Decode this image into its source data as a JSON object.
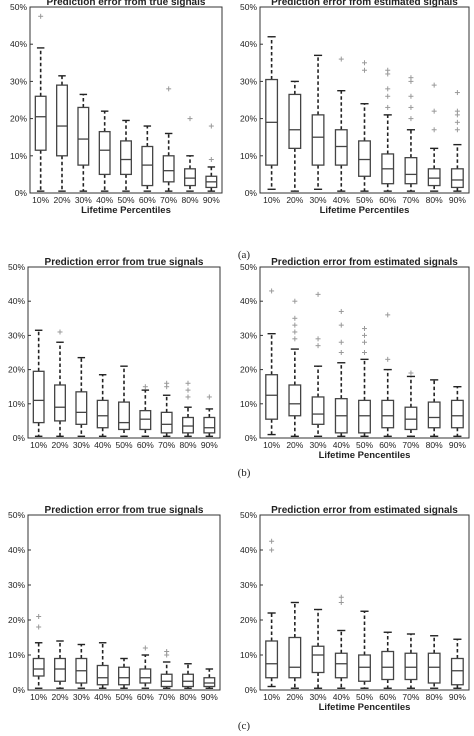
{
  "subfigure_labels": [
    "(a)",
    "(b)",
    "(c)"
  ],
  "chart_data": [
    {
      "type": "box",
      "panel": "(a)",
      "title": "Prediction error from true signals",
      "xlabel": "Lifetime Percentiles",
      "ylabel": "",
      "categories": [
        "10%",
        "20%",
        "30%",
        "40%",
        "50%",
        "60%",
        "70%",
        "80%",
        "90%"
      ],
      "yticks": [
        "0%",
        "10%",
        "20%",
        "30%",
        "40%",
        "50%"
      ],
      "ylim": [
        0,
        50
      ],
      "boxes": [
        {
          "min": 0.5,
          "q1": 11.5,
          "median": 20.5,
          "q3": 26,
          "max": 39,
          "outliers": [
            47.5
          ]
        },
        {
          "min": 0.5,
          "q1": 10,
          "median": 18,
          "q3": 29,
          "max": 31.5,
          "outliers": []
        },
        {
          "min": 0.5,
          "q1": 7.5,
          "median": 14.5,
          "q3": 23,
          "max": 26.5,
          "outliers": []
        },
        {
          "min": 0.5,
          "q1": 5,
          "median": 11.5,
          "q3": 16.5,
          "max": 22,
          "outliers": []
        },
        {
          "min": 0.5,
          "q1": 5,
          "median": 9,
          "q3": 14,
          "max": 19.5,
          "outliers": []
        },
        {
          "min": 0.5,
          "q1": 2,
          "median": 7.5,
          "q3": 12.5,
          "max": 18,
          "outliers": []
        },
        {
          "min": 0.5,
          "q1": 3,
          "median": 6,
          "q3": 10,
          "max": 16,
          "outliers": [
            28
          ]
        },
        {
          "min": 0.5,
          "q1": 2,
          "median": 4,
          "q3": 6.5,
          "max": 10,
          "outliers": [
            20
          ]
        },
        {
          "min": 0.5,
          "q1": 1.5,
          "median": 3,
          "q3": 4.5,
          "max": 7,
          "outliers": [
            9,
            18
          ]
        }
      ]
    },
    {
      "type": "box",
      "panel": "(a)",
      "title": "Prediction error from estimated signals",
      "xlabel": "Lifetime Percentiles",
      "ylabel": "",
      "categories": [
        "10%",
        "20%",
        "30%",
        "40%",
        "50%",
        "60%",
        "70%",
        "80%",
        "90%"
      ],
      "yticks": [
        "0%",
        "10%",
        "20%",
        "30%",
        "40%",
        "50%"
      ],
      "ylim": [
        0,
        50
      ],
      "boxes": [
        {
          "min": 1,
          "q1": 7.5,
          "median": 19,
          "q3": 30.5,
          "max": 42,
          "outliers": []
        },
        {
          "min": 0.5,
          "q1": 12,
          "median": 17,
          "q3": 26.5,
          "max": 30,
          "outliers": []
        },
        {
          "min": 1,
          "q1": 7.5,
          "median": 15,
          "q3": 21,
          "max": 37,
          "outliers": []
        },
        {
          "min": 0.5,
          "q1": 7.5,
          "median": 12.5,
          "q3": 17,
          "max": 27.5,
          "outliers": [
            36
          ]
        },
        {
          "min": 0.5,
          "q1": 4.5,
          "median": 9,
          "q3": 14,
          "max": 24,
          "outliers": [
            33,
            35
          ]
        },
        {
          "min": 0.5,
          "q1": 2.5,
          "median": 6.5,
          "q3": 10.5,
          "max": 21,
          "outliers": [
            23,
            26,
            28,
            32,
            33
          ]
        },
        {
          "min": 0.5,
          "q1": 2.5,
          "median": 5,
          "q3": 9.5,
          "max": 17,
          "outliers": [
            20,
            23,
            26,
            30,
            31
          ]
        },
        {
          "min": 0.5,
          "q1": 2,
          "median": 4,
          "q3": 6.5,
          "max": 12,
          "outliers": [
            17,
            22,
            29
          ]
        },
        {
          "min": 0.5,
          "q1": 1.5,
          "median": 3.5,
          "q3": 6.5,
          "max": 13,
          "outliers": [
            17,
            19,
            21,
            22,
            27
          ]
        }
      ]
    },
    {
      "type": "box",
      "panel": "(b)",
      "title": "Prediction error from true signals",
      "xlabel": "",
      "ylabel": "",
      "categories": [
        "10%",
        "20%",
        "30%",
        "40%",
        "50%",
        "60%",
        "70%",
        "80%",
        "90%"
      ],
      "yticks": [
        "0%",
        "10%",
        "20%",
        "30%",
        "40%",
        "50%"
      ],
      "ylim": [
        0,
        50
      ],
      "boxes": [
        {
          "min": 0.5,
          "q1": 4.5,
          "median": 11,
          "q3": 19.5,
          "max": 31.5,
          "outliers": []
        },
        {
          "min": 0.5,
          "q1": 5,
          "median": 9,
          "q3": 15.5,
          "max": 28,
          "outliers": [
            31
          ]
        },
        {
          "min": 0.5,
          "q1": 4,
          "median": 7.5,
          "q3": 13.5,
          "max": 23.5,
          "outliers": []
        },
        {
          "min": 0.5,
          "q1": 3,
          "median": 6.5,
          "q3": 11,
          "max": 18.5,
          "outliers": []
        },
        {
          "min": 0.5,
          "q1": 2.5,
          "median": 4.5,
          "q3": 10.5,
          "max": 21,
          "outliers": []
        },
        {
          "min": 0.5,
          "q1": 2.5,
          "median": 5.5,
          "q3": 8,
          "max": 14,
          "outliers": [
            15
          ]
        },
        {
          "min": 0.5,
          "q1": 1.5,
          "median": 4,
          "q3": 7.5,
          "max": 12.5,
          "outliers": [
            15,
            16
          ]
        },
        {
          "min": 0.5,
          "q1": 1.5,
          "median": 3.5,
          "q3": 6,
          "max": 9,
          "outliers": [
            12,
            14,
            16
          ]
        },
        {
          "min": 0.5,
          "q1": 1.5,
          "median": 3,
          "q3": 6,
          "max": 8.5,
          "outliers": [
            12
          ]
        }
      ]
    },
    {
      "type": "box",
      "panel": "(b)",
      "title": "Prediction error from estimated signals",
      "xlabel": "Lifetime Pencentiles",
      "ylabel": "",
      "categories": [
        "10%",
        "20%",
        "30%",
        "40%",
        "50%",
        "60%",
        "70%",
        "80%",
        "90%"
      ],
      "yticks": [
        "0%",
        "10%",
        "20%",
        "30%",
        "40%",
        "50%"
      ],
      "ylim": [
        0,
        50
      ],
      "boxes": [
        {
          "min": 1,
          "q1": 5.5,
          "median": 12.5,
          "q3": 18.5,
          "max": 30.5,
          "outliers": [
            43
          ]
        },
        {
          "min": 0.5,
          "q1": 6.5,
          "median": 10,
          "q3": 15.5,
          "max": 26,
          "outliers": [
            29,
            31,
            33,
            35,
            40
          ]
        },
        {
          "min": 0.5,
          "q1": 4,
          "median": 7,
          "q3": 12,
          "max": 21,
          "outliers": [
            27,
            29,
            42
          ]
        },
        {
          "min": 0.5,
          "q1": 1.5,
          "median": 6.5,
          "q3": 11.5,
          "max": 22,
          "outliers": [
            25,
            28,
            33,
            37
          ]
        },
        {
          "min": 0.5,
          "q1": 1.5,
          "median": 6.5,
          "q3": 11,
          "max": 23,
          "outliers": [
            25,
            28,
            30,
            32
          ]
        },
        {
          "min": 0.5,
          "q1": 3,
          "median": 6.5,
          "q3": 11,
          "max": 20,
          "outliers": [
            23,
            36
          ]
        },
        {
          "min": 0.5,
          "q1": 2.5,
          "median": 5.5,
          "q3": 9,
          "max": 18,
          "outliers": [
            19
          ]
        },
        {
          "min": 0.5,
          "q1": 3,
          "median": 6,
          "q3": 10.5,
          "max": 17,
          "outliers": []
        },
        {
          "min": 0.5,
          "q1": 3,
          "median": 6.5,
          "q3": 11,
          "max": 15,
          "outliers": []
        }
      ]
    },
    {
      "type": "box",
      "panel": "(c)",
      "title": "Prediction error from true signals",
      "xlabel": "",
      "ylabel": "",
      "categories": [
        "10%",
        "20%",
        "30%",
        "40%",
        "50%",
        "60%",
        "70%",
        "80%",
        "90%"
      ],
      "yticks": [
        "0%",
        "10%",
        "20%",
        "30%",
        "40%",
        "50%"
      ],
      "ylim": [
        0,
        50
      ],
      "boxes": [
        {
          "min": 0.5,
          "q1": 4,
          "median": 6,
          "q3": 9,
          "max": 13.5,
          "outliers": [
            18,
            21
          ]
        },
        {
          "min": 0.5,
          "q1": 2.5,
          "median": 6,
          "q3": 9,
          "max": 14,
          "outliers": []
        },
        {
          "min": 0.5,
          "q1": 2,
          "median": 5.5,
          "q3": 9,
          "max": 13,
          "outliers": []
        },
        {
          "min": 0.5,
          "q1": 1.5,
          "median": 3.5,
          "q3": 7,
          "max": 13.5,
          "outliers": []
        },
        {
          "min": 0.5,
          "q1": 1.5,
          "median": 3.5,
          "q3": 6.5,
          "max": 9,
          "outliers": []
        },
        {
          "min": 0.5,
          "q1": 2,
          "median": 3.5,
          "q3": 6,
          "max": 10,
          "outliers": [
            12
          ]
        },
        {
          "min": 0.5,
          "q1": 1,
          "median": 2.5,
          "q3": 4.5,
          "max": 8,
          "outliers": [
            10,
            11
          ]
        },
        {
          "min": 0.5,
          "q1": 1,
          "median": 2.5,
          "q3": 4.5,
          "max": 7.5,
          "outliers": []
        },
        {
          "min": 0.5,
          "q1": 1,
          "median": 2,
          "q3": 3.5,
          "max": 6,
          "outliers": []
        }
      ]
    },
    {
      "type": "box",
      "panel": "(c)",
      "title": "Prediction error from estimated signals",
      "xlabel": "Lifetime Pencentiles",
      "ylabel": "",
      "categories": [
        "10%",
        "20%",
        "30%",
        "40%",
        "50%",
        "60%",
        "70%",
        "80%",
        "90%"
      ],
      "yticks": [
        "0%",
        "10%",
        "20%",
        "30%",
        "40%",
        "50%"
      ],
      "ylim": [
        0,
        50
      ],
      "boxes": [
        {
          "min": 1,
          "q1": 3.5,
          "median": 7.5,
          "q3": 14,
          "max": 22,
          "outliers": [
            40,
            42.5
          ]
        },
        {
          "min": 0.5,
          "q1": 3.5,
          "median": 6.5,
          "q3": 15,
          "max": 25,
          "outliers": []
        },
        {
          "min": 0.5,
          "q1": 5,
          "median": 10,
          "q3": 12.5,
          "max": 23,
          "outliers": []
        },
        {
          "min": 0.5,
          "q1": 3.5,
          "median": 7.5,
          "q3": 10.5,
          "max": 17,
          "outliers": [
            25,
            26.5
          ]
        },
        {
          "min": 0.5,
          "q1": 2.5,
          "median": 6.5,
          "q3": 10,
          "max": 22.5,
          "outliers": []
        },
        {
          "min": 0.5,
          "q1": 3,
          "median": 6.5,
          "q3": 11,
          "max": 16.5,
          "outliers": []
        },
        {
          "min": 0.5,
          "q1": 3,
          "median": 6.5,
          "q3": 10.5,
          "max": 16,
          "outliers": []
        },
        {
          "min": 0.5,
          "q1": 2,
          "median": 6.5,
          "q3": 10.5,
          "max": 15.5,
          "outliers": []
        },
        {
          "min": 0.5,
          "q1": 1.5,
          "median": 5.5,
          "q3": 9,
          "max": 14.5,
          "outliers": []
        }
      ]
    }
  ]
}
